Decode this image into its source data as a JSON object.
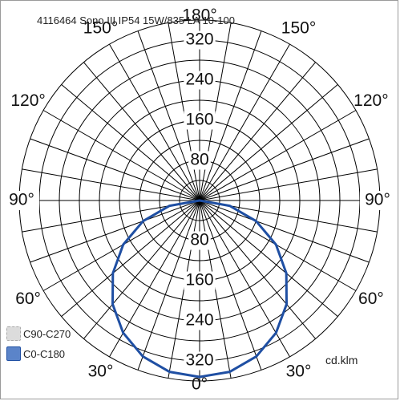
{
  "chart_data": {
    "type": "polar",
    "title": "4116464 Sono III IP54 15W/835 LA 10-100",
    "unit": "cd.klm",
    "radial_max": 360,
    "radial_circles": [
      40,
      80,
      120,
      160,
      200,
      240,
      280,
      320,
      360
    ],
    "radial_tick_labels": [
      "80",
      "160",
      "240",
      "320"
    ],
    "radial_tick_values": [
      80,
      160,
      240,
      320
    ],
    "angle_labels": [
      {
        "text": "0°",
        "angle": 0,
        "side": "bottom"
      },
      {
        "text": "30°",
        "angle": 30,
        "side": "right"
      },
      {
        "text": "30°",
        "angle": 30,
        "side": "left"
      },
      {
        "text": "60°",
        "angle": 60,
        "side": "right"
      },
      {
        "text": "60°",
        "angle": 60,
        "side": "left"
      },
      {
        "text": "90°",
        "angle": 90,
        "side": "right"
      },
      {
        "text": "90°",
        "angle": 90,
        "side": "left"
      },
      {
        "text": "120°",
        "angle": 120,
        "side": "right"
      },
      {
        "text": "120°",
        "angle": 120,
        "side": "left"
      },
      {
        "text": "150°",
        "angle": 150,
        "side": "right"
      },
      {
        "text": "150°",
        "angle": 150,
        "side": "left"
      },
      {
        "text": "180°",
        "angle": 180,
        "side": "top"
      }
    ],
    "series": [
      {
        "name": "C90-C270",
        "color": "#c8c8c8",
        "style": "dashed",
        "gamma": [
          0,
          10,
          20,
          30,
          40,
          50,
          60,
          70,
          80,
          90
        ],
        "intensity": [
          352,
          347,
          331,
          305,
          270,
          226,
          176,
          120,
          61,
          0
        ]
      },
      {
        "name": "C0-C180",
        "color": "#1f4fa3",
        "style": "solid",
        "gamma": [
          0,
          10,
          20,
          30,
          40,
          50,
          60,
          70,
          80,
          90
        ],
        "intensity": [
          352,
          347,
          331,
          305,
          270,
          226,
          176,
          120,
          61,
          0
        ]
      }
    ],
    "legend": [
      {
        "label": "C90-C270",
        "swatch_fill": "#dcdcdc",
        "swatch_border": "#a8a8a8",
        "border_style": "dashed"
      },
      {
        "label": "C0-C180",
        "swatch_fill": "#5b84c9",
        "swatch_border": "#1f4fa3",
        "border_style": "solid"
      }
    ],
    "legend_position": "bottom-left",
    "grid": true
  }
}
